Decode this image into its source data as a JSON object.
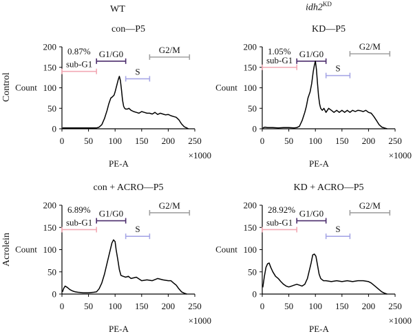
{
  "figure": {
    "col_headers": [
      {
        "text": "WT",
        "italic": false,
        "sup": ""
      },
      {
        "text": "idh2",
        "italic": true,
        "sup": "KD"
      }
    ],
    "row_headers": [
      "Control",
      "Acrolein"
    ]
  },
  "chart_data": [
    {
      "type": "line",
      "title": "con—P5",
      "xlabel": "PE-A",
      "xunit": "×1000",
      "ylabel": "Count",
      "xlim": [
        0,
        250
      ],
      "ylim": [
        0,
        200
      ],
      "xticks": [
        0,
        50,
        100,
        150,
        200,
        250
      ],
      "yticks": [
        0,
        50,
        100,
        150,
        200
      ],
      "percent": "0.87%",
      "gates": [
        {
          "label": "sub-G1",
          "x": [
            0,
            65
          ],
          "y": 140,
          "color": "#f2a9b4"
        },
        {
          "label": "G1/G0",
          "x": [
            65,
            120
          ],
          "y": 165,
          "color": "#4a2b6b"
        },
        {
          "label": "S",
          "x": [
            120,
            165
          ],
          "y": 122,
          "color": "#a7a7e6"
        },
        {
          "label": "G2/M",
          "x": [
            165,
            240
          ],
          "y": 175,
          "color": "#a0a0a0"
        }
      ],
      "series": [
        {
          "x": [
            1,
            10,
            20,
            30,
            40,
            50,
            60,
            65,
            70,
            75,
            80,
            85,
            88,
            92,
            95,
            98,
            100,
            103,
            106,
            108,
            110,
            112,
            114,
            116,
            118,
            120,
            123,
            126,
            130,
            135,
            140,
            145,
            150,
            155,
            160,
            165,
            170,
            175,
            180,
            185,
            190,
            195,
            200,
            205,
            210,
            215,
            220,
            225,
            230,
            235,
            238
          ],
          "y": [
            2,
            2,
            2,
            2,
            2,
            2,
            2,
            2,
            4,
            10,
            25,
            45,
            60,
            75,
            78,
            82,
            90,
            105,
            120,
            128,
            118,
            95,
            70,
            55,
            50,
            48,
            48,
            50,
            45,
            42,
            40,
            38,
            42,
            40,
            38,
            38,
            36,
            40,
            35,
            38,
            36,
            34,
            35,
            32,
            30,
            28,
            22,
            12,
            5,
            2,
            0
          ]
        }
      ]
    },
    {
      "type": "line",
      "title": "KD—P5",
      "xlabel": "PE-A",
      "xunit": "×1000",
      "ylabel": "Count",
      "xlim": [
        0,
        250
      ],
      "ylim": [
        0,
        200
      ],
      "xticks": [
        0,
        50,
        100,
        150,
        200,
        250
      ],
      "yticks": [
        0,
        50,
        100,
        150,
        200
      ],
      "percent": "1.05%",
      "gates": [
        {
          "label": "sub-G1",
          "x": [
            0,
            65
          ],
          "y": 150,
          "color": "#f2a9b4"
        },
        {
          "label": "G1/G0",
          "x": [
            65,
            120
          ],
          "y": 165,
          "color": "#4a2b6b"
        },
        {
          "label": "S",
          "x": [
            120,
            165
          ],
          "y": 130,
          "color": "#a7a7e6"
        },
        {
          "label": "G2/M",
          "x": [
            165,
            240
          ],
          "y": 183,
          "color": "#a0a0a0"
        }
      ],
      "series": [
        {
          "x": [
            1,
            5,
            10,
            20,
            30,
            40,
            50,
            60,
            65,
            70,
            75,
            80,
            83,
            86,
            90,
            93,
            96,
            98,
            100,
            102,
            104,
            106,
            108,
            110,
            113,
            116,
            120,
            125,
            130,
            135,
            140,
            145,
            150,
            155,
            160,
            165,
            170,
            175,
            180,
            185,
            190,
            195,
            200,
            205,
            210,
            215,
            220,
            225,
            230,
            235
          ],
          "y": [
            2,
            4,
            3,
            3,
            2,
            3,
            3,
            2,
            3,
            6,
            20,
            40,
            55,
            75,
            90,
            110,
            140,
            155,
            165,
            145,
            110,
            80,
            60,
            50,
            45,
            50,
            40,
            50,
            45,
            40,
            45,
            40,
            45,
            40,
            45,
            40,
            45,
            42,
            45,
            44,
            42,
            45,
            40,
            38,
            30,
            20,
            10,
            4,
            2,
            0
          ]
        }
      ]
    },
    {
      "type": "line",
      "title": "con + ACRO—P5",
      "xlabel": "PE-A",
      "xunit": "×1000",
      "ylabel": "Count",
      "xlim": [
        0,
        250
      ],
      "ylim": [
        0,
        200
      ],
      "xticks": [
        0,
        50,
        100,
        150,
        200,
        250
      ],
      "yticks": [
        0,
        50,
        100,
        150,
        200
      ],
      "percent": "6.89%",
      "gates": [
        {
          "label": "sub-G1",
          "x": [
            0,
            65
          ],
          "y": 145,
          "color": "#f2a9b4"
        },
        {
          "label": "G1/G0",
          "x": [
            65,
            120
          ],
          "y": 165,
          "color": "#4a2b6b"
        },
        {
          "label": "S",
          "x": [
            120,
            165
          ],
          "y": 130,
          "color": "#a7a7e6"
        },
        {
          "label": "G2/M",
          "x": [
            165,
            240
          ],
          "y": 183,
          "color": "#a0a0a0"
        }
      ],
      "series": [
        {
          "x": [
            1,
            3,
            6,
            10,
            15,
            20,
            25,
            30,
            40,
            50,
            60,
            65,
            70,
            75,
            80,
            85,
            90,
            94,
            97,
            100,
            102,
            105,
            108,
            111,
            115,
            120,
            125,
            130,
            140,
            150,
            160,
            170,
            180,
            190,
            200,
            205,
            210,
            215,
            220,
            225,
            230,
            235
          ],
          "y": [
            5,
            12,
            18,
            15,
            10,
            7,
            5,
            4,
            3,
            3,
            4,
            5,
            12,
            25,
            45,
            70,
            95,
            115,
            122,
            118,
            100,
            78,
            55,
            42,
            40,
            38,
            40,
            35,
            38,
            30,
            32,
            30,
            35,
            32,
            30,
            30,
            25,
            20,
            12,
            5,
            2,
            0
          ]
        }
      ]
    },
    {
      "type": "line",
      "title": "KD + ACRO—P5",
      "xlabel": "PE-A",
      "xunit": "×1000",
      "ylabel": "Count",
      "xlim": [
        0,
        250
      ],
      "ylim": [
        0,
        200
      ],
      "xticks": [
        0,
        50,
        100,
        150,
        200,
        250
      ],
      "yticks": [
        0,
        50,
        100,
        150,
        200
      ],
      "percent": "28.92%",
      "gates": [
        {
          "label": "sub-G1",
          "x": [
            0,
            65
          ],
          "y": 145,
          "color": "#f2a9b4"
        },
        {
          "label": "G1/G0",
          "x": [
            65,
            120
          ],
          "y": 165,
          "color": "#4a2b6b"
        },
        {
          "label": "S",
          "x": [
            120,
            165
          ],
          "y": 130,
          "color": "#a7a7e6"
        },
        {
          "label": "G2/M",
          "x": [
            165,
            240
          ],
          "y": 183,
          "color": "#a0a0a0"
        }
      ],
      "series": [
        {
          "x": [
            1,
            4,
            7,
            10,
            13,
            16,
            20,
            25,
            30,
            35,
            40,
            45,
            50,
            55,
            60,
            65,
            70,
            75,
            80,
            85,
            88,
            92,
            95,
            98,
            101,
            104,
            107,
            110,
            115,
            120,
            130,
            140,
            150,
            160,
            170,
            180,
            190,
            200,
            205,
            210,
            215,
            220,
            225,
            230,
            235
          ],
          "y": [
            15,
            40,
            60,
            68,
            70,
            60,
            50,
            40,
            35,
            28,
            22,
            18,
            16,
            18,
            20,
            22,
            20,
            18,
            22,
            35,
            50,
            70,
            88,
            90,
            85,
            65,
            45,
            35,
            30,
            30,
            28,
            30,
            28,
            30,
            28,
            30,
            30,
            28,
            25,
            20,
            15,
            10,
            5,
            2,
            0
          ]
        }
      ]
    }
  ]
}
